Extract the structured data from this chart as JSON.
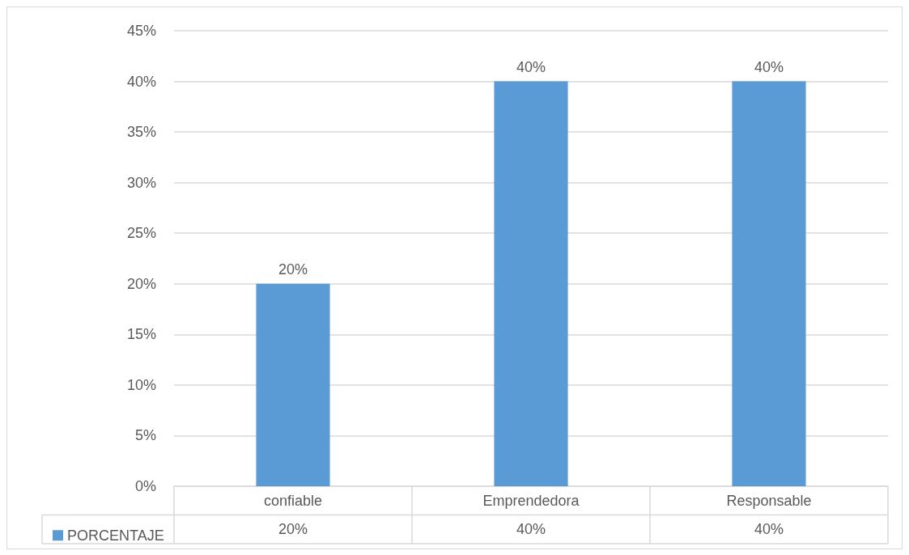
{
  "chart_data": {
    "type": "bar",
    "categories": [
      "confiable",
      "Emprendedora",
      "Responsable"
    ],
    "series": [
      {
        "name": "PORCENTAJE",
        "color": "#5b9bd5",
        "values": [
          20,
          40,
          40
        ],
        "value_labels": [
          "20%",
          "40%",
          "40%"
        ]
      }
    ],
    "ylim": [
      0,
      45
    ],
    "yticks": [
      {
        "value": 0,
        "label": "0%"
      },
      {
        "value": 5,
        "label": "5%"
      },
      {
        "value": 10,
        "label": "10%"
      },
      {
        "value": 15,
        "label": "15%"
      },
      {
        "value": 20,
        "label": "20%"
      },
      {
        "value": 25,
        "label": "25%"
      },
      {
        "value": 30,
        "label": "30%"
      },
      {
        "value": 35,
        "label": "35%"
      },
      {
        "value": 40,
        "label": "40%"
      },
      {
        "value": 45,
        "label": "45%"
      }
    ],
    "grid": "y",
    "legend": "bottom left"
  }
}
